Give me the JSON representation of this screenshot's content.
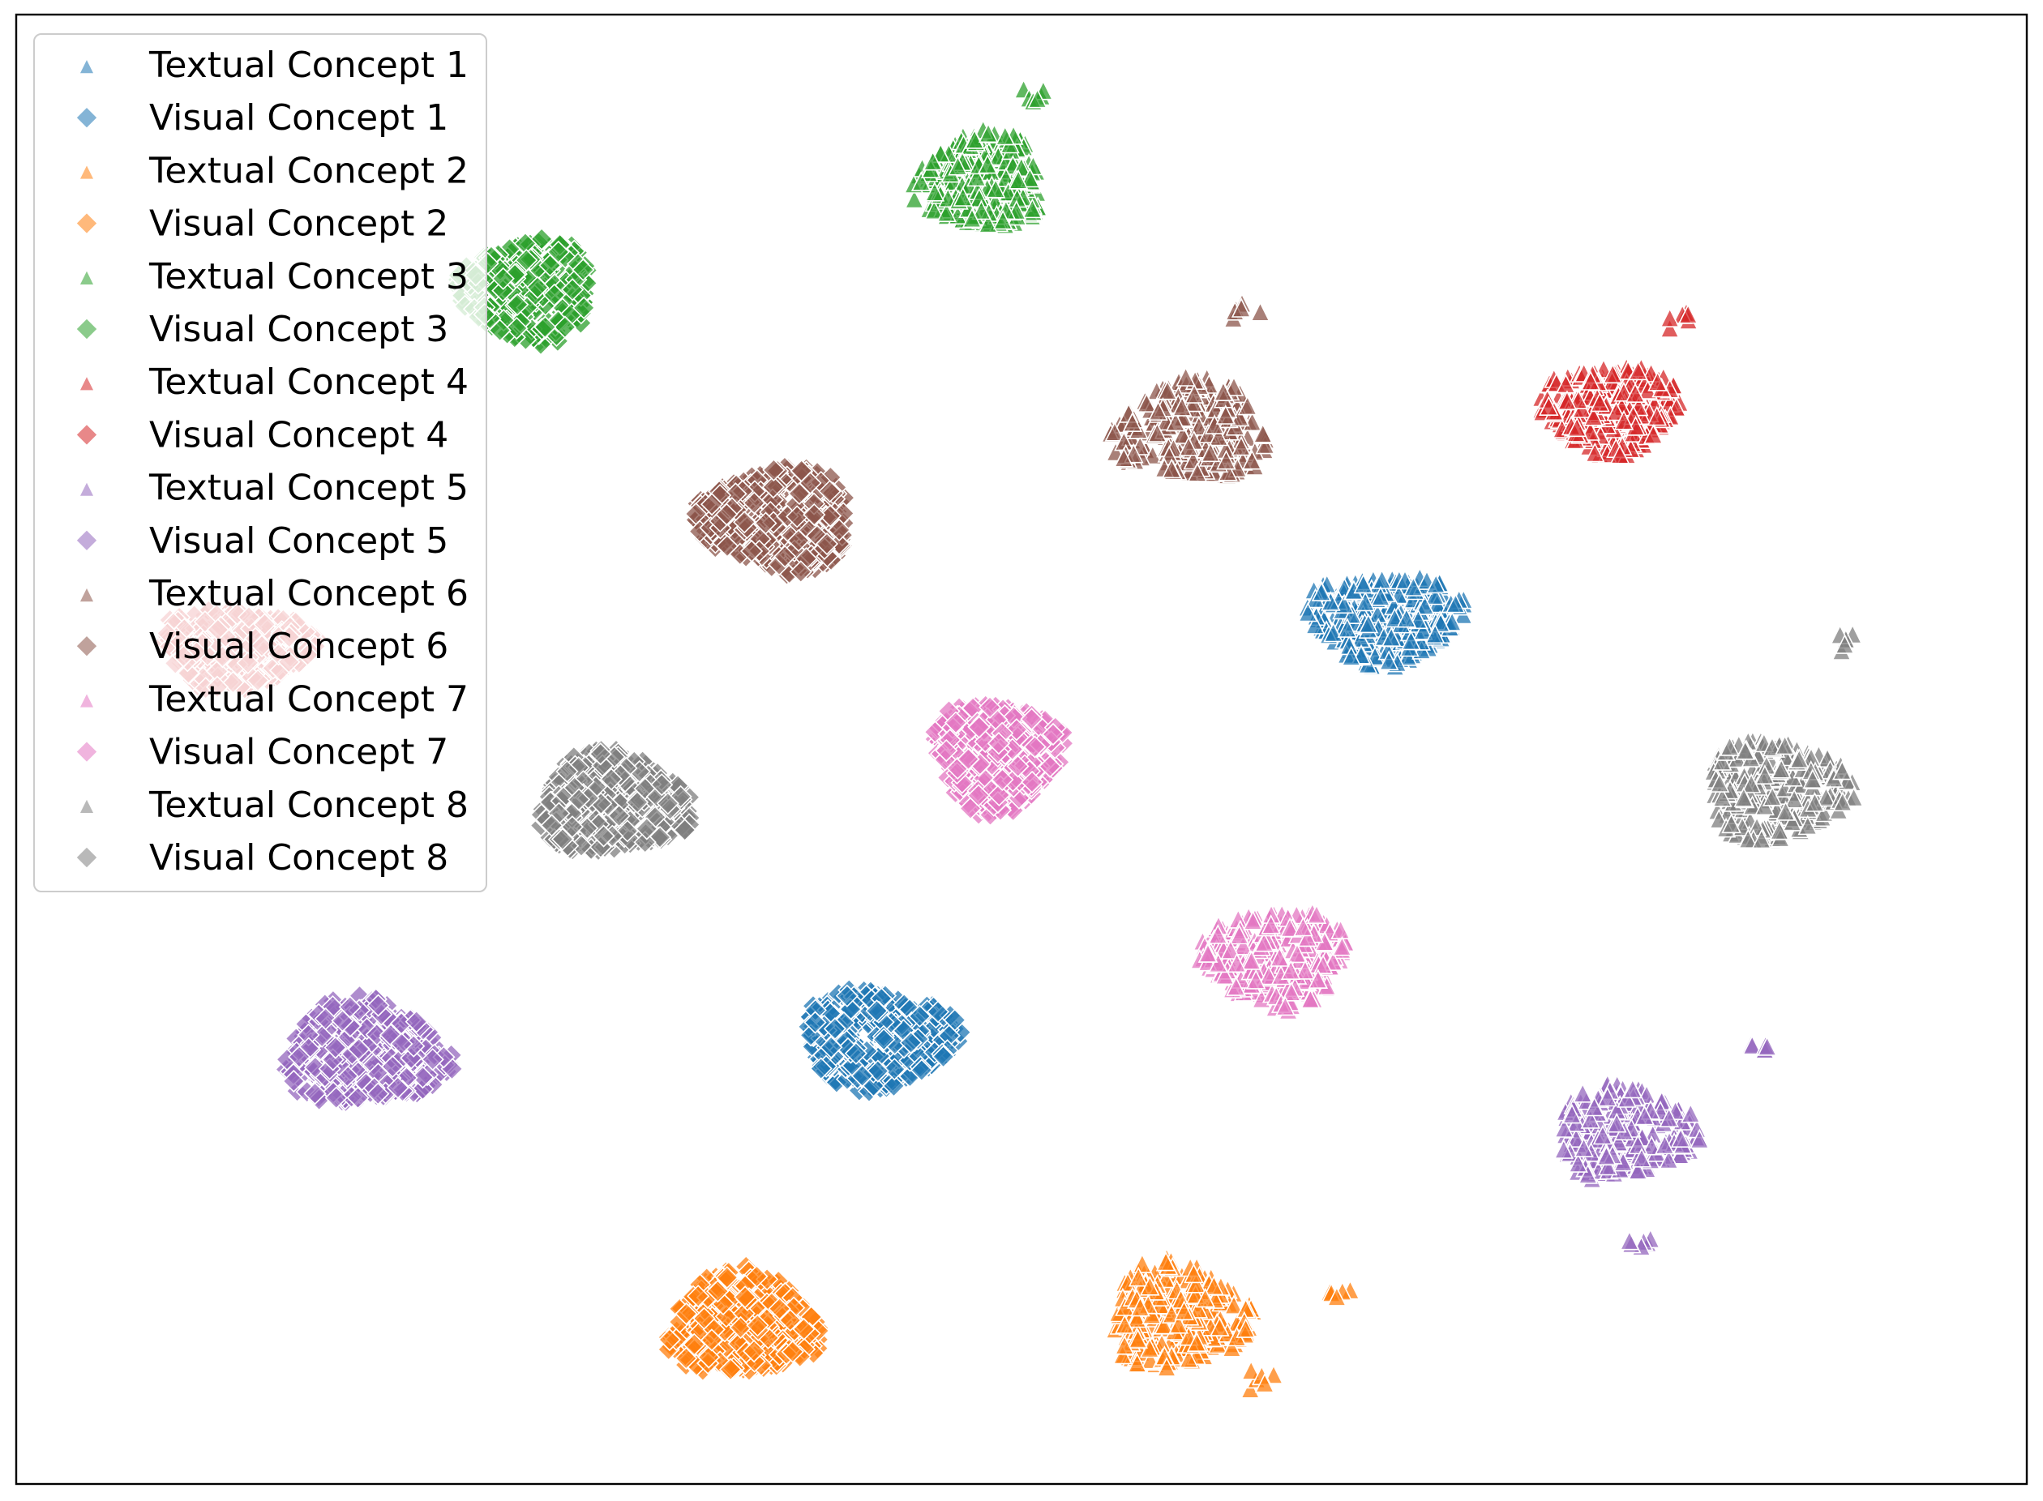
{
  "chart_data": {
    "type": "scatter",
    "title": "",
    "xlabel": "",
    "ylabel": "",
    "axis_ticks": "hidden",
    "legend_position": "upper-left",
    "xlim": [
      0,
      100
    ],
    "ylim": [
      0,
      100
    ],
    "series": [
      {
        "name": "Textual Concept 1",
        "concept": 1,
        "modality": "textual",
        "marker": "triangle",
        "color": "#1f77b4",
        "cluster": {
          "center": [
            68.1,
            58.9
          ],
          "spread": [
            7.6,
            6.2
          ],
          "count": 300
        }
      },
      {
        "name": "Visual Concept 1",
        "concept": 1,
        "modality": "visual",
        "marker": "diamond",
        "color": "#1f77b4",
        "cluster": {
          "center": [
            42.8,
            30.3
          ],
          "spread": [
            7.6,
            6.7
          ],
          "count": 360
        }
      },
      {
        "name": "Textual Concept 2",
        "concept": 2,
        "modality": "textual",
        "marker": "triangle",
        "color": "#ff7f0e",
        "cluster": {
          "center": [
            57.8,
            11.4
          ],
          "spread": [
            6.8,
            7.3
          ],
          "count": 300
        }
      },
      {
        "name": "Visual Concept 2",
        "concept": 2,
        "modality": "visual",
        "marker": "diamond",
        "color": "#ff7f0e",
        "cluster": {
          "center": [
            36.1,
            10.9
          ],
          "spread": [
            7.4,
            7.2
          ],
          "count": 360
        }
      },
      {
        "name": "Textual Concept 3",
        "concept": 3,
        "modality": "textual",
        "marker": "triangle",
        "color": "#2ca02c",
        "cluster": {
          "center": [
            48.0,
            88.6
          ],
          "spread": [
            6.4,
            6.6
          ],
          "count": 300
        }
      },
      {
        "name": "Visual Concept 3",
        "concept": 3,
        "modality": "visual",
        "marker": "diamond",
        "color": "#2ca02c",
        "cluster": {
          "center": [
            25.5,
            81.2
          ],
          "spread": [
            6.6,
            7.0
          ],
          "count": 340
        }
      },
      {
        "name": "Textual Concept 4",
        "concept": 4,
        "modality": "textual",
        "marker": "triangle",
        "color": "#d62728",
        "cluster": {
          "center": [
            79.3,
            73.2
          ],
          "spread": [
            6.9,
            6.0
          ],
          "count": 300
        }
      },
      {
        "name": "Visual Concept 4",
        "concept": 4,
        "modality": "visual",
        "marker": "diamond",
        "color": "#d62728",
        "cluster": {
          "center": [
            10.9,
            56.9
          ],
          "spread": [
            7.4,
            5.6
          ],
          "count": 260
        }
      },
      {
        "name": "Textual Concept 5",
        "concept": 5,
        "modality": "textual",
        "marker": "triangle",
        "color": "#9467bd",
        "cluster": {
          "center": [
            80.0,
            23.9
          ],
          "spread": [
            6.9,
            6.4
          ],
          "count": 260
        }
      },
      {
        "name": "Visual Concept 5",
        "concept": 5,
        "modality": "visual",
        "marker": "diamond",
        "color": "#9467bd",
        "cluster": {
          "center": [
            17.3,
            29.3
          ],
          "spread": [
            8.2,
            7.1
          ],
          "count": 340
        }
      },
      {
        "name": "Textual Concept 6",
        "concept": 6,
        "modality": "textual",
        "marker": "triangle",
        "color": "#8c564b",
        "cluster": {
          "center": [
            58.5,
            71.7
          ],
          "spread": [
            7.6,
            6.7
          ],
          "count": 280
        }
      },
      {
        "name": "Visual Concept 6",
        "concept": 6,
        "modality": "visual",
        "marker": "diamond",
        "color": "#8c564b",
        "cluster": {
          "center": [
            37.8,
            65.6
          ],
          "spread": [
            7.7,
            7.1
          ],
          "count": 360
        }
      },
      {
        "name": "Textual Concept 7",
        "concept": 7,
        "modality": "textual",
        "marker": "triangle",
        "color": "#e377c2",
        "cluster": {
          "center": [
            62.6,
            35.8
          ],
          "spread": [
            7.2,
            6.6
          ],
          "count": 300
        }
      },
      {
        "name": "Visual Concept 7",
        "concept": 7,
        "modality": "visual",
        "marker": "diamond",
        "color": "#e377c2",
        "cluster": {
          "center": [
            48.8,
            49.6
          ],
          "spread": [
            6.3,
            7.5
          ],
          "count": 340
        }
      },
      {
        "name": "Textual Concept 8",
        "concept": 8,
        "modality": "textual",
        "marker": "triangle",
        "color": "#7f7f7f",
        "cluster": {
          "center": [
            87.6,
            47.2
          ],
          "spread": [
            7.2,
            6.7
          ],
          "count": 260
        }
      },
      {
        "name": "Visual Concept 8",
        "concept": 8,
        "modality": "visual",
        "marker": "diamond",
        "color": "#7f7f7f",
        "cluster": {
          "center": [
            29.7,
            46.3
          ],
          "spread": [
            7.5,
            6.7
          ],
          "count": 340
        }
      }
    ],
    "outliers": [
      {
        "series": "Textual Concept 3",
        "x": 50.8,
        "y": 94.7
      },
      {
        "series": "Textual Concept 6",
        "x": 61.2,
        "y": 79.8
      },
      {
        "series": "Textual Concept 4",
        "x": 82.5,
        "y": 79.0
      },
      {
        "series": "Textual Concept 1",
        "x": 70.1,
        "y": 61.1
      },
      {
        "series": "Textual Concept 8",
        "x": 91.0,
        "y": 57.3
      },
      {
        "series": "Textual Concept 5",
        "x": 86.5,
        "y": 29.6
      },
      {
        "series": "Textual Concept 5",
        "x": 80.8,
        "y": 16.5
      },
      {
        "series": "Textual Concept 2",
        "x": 66.0,
        "y": 12.8
      },
      {
        "series": "Textual Concept 2",
        "x": 62.0,
        "y": 7.0
      }
    ]
  }
}
